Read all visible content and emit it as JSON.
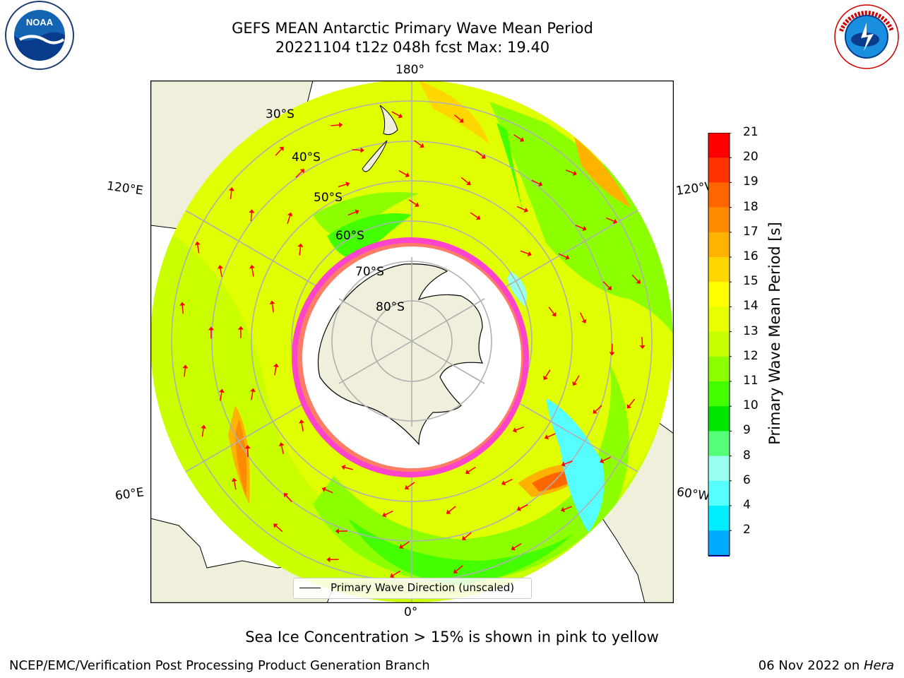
{
  "title_line1": "GEFS MEAN Antarctic Primary Wave Mean Period",
  "title_line2": "20221104 t12z 048h fcst   Max: 19.40",
  "map": {
    "meridian_labels": {
      "top": "180°",
      "bottom": "0°",
      "left_upper": "120°E",
      "left_lower": "60°E",
      "right_upper": "120°W",
      "right_lower": "60°W"
    },
    "latitude_labels": [
      "30°S",
      "40°S",
      "50°S",
      "60°S",
      "70°S",
      "80°S"
    ],
    "legend_label": "Primary Wave Direction (unscaled)"
  },
  "colorbar": {
    "title": "Primary Wave Mean Period [s]",
    "ticks": [
      "21",
      "20",
      "19",
      "18",
      "17",
      "16",
      "15",
      "14",
      "13",
      "12",
      "11",
      "10",
      "9",
      "8",
      "6",
      "4",
      "2"
    ],
    "colors": [
      "#ff0000",
      "#ff3300",
      "#ff6600",
      "#ff8c00",
      "#ffb300",
      "#ffd700",
      "#ffff00",
      "#e8ff00",
      "#c8ff00",
      "#8cff00",
      "#44ff00",
      "#00e600",
      "#55ff77",
      "#99ffee",
      "#55ffff",
      "#00eeff",
      "#00aaff",
      "#0055ff"
    ],
    "extend_color": "#0000ff"
  },
  "colors": {
    "land": "#efefdb",
    "ice": "#ffffff",
    "sea_ice_edge": "#ff44cc",
    "arrow": "#ff0000"
  },
  "note": "Sea Ice Concentration > 15% is shown in pink to yellow",
  "footer_left": "NCEP/EMC/Verification Post Processing Product Generation Branch",
  "footer_right_date": "06 Nov 2022 on ",
  "footer_right_machine": "Hera",
  "logos": {
    "noaa": "NOAA",
    "nws": "NATIONAL WEATHER SERVICE"
  }
}
